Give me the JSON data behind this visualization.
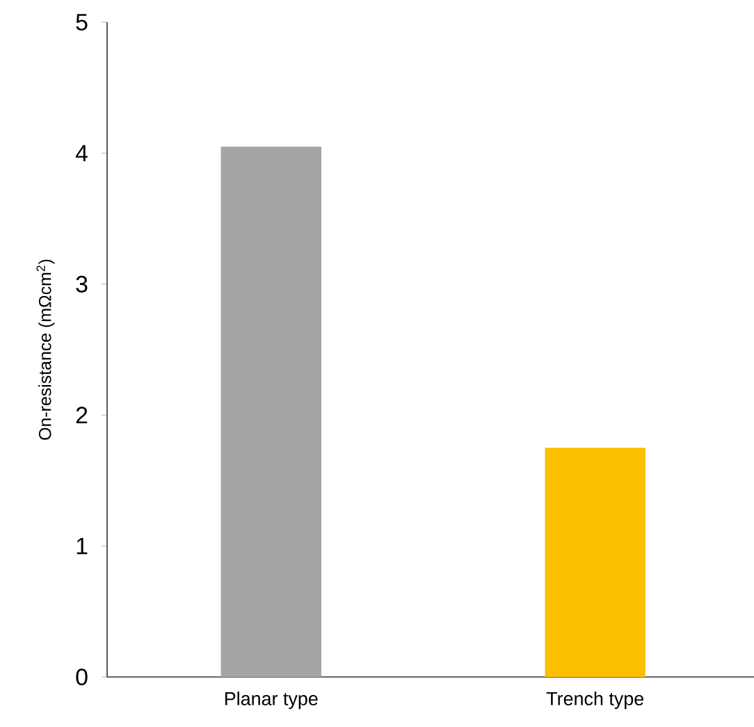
{
  "chart_data": {
    "type": "bar",
    "ylabel": "On-resistance (mΩcm$^{2}$)",
    "categories": [
      "Planar type",
      "Trench type"
    ],
    "values": [
      4.05,
      1.75
    ],
    "colors": [
      "#a5a5a5",
      "#fcbf00"
    ],
    "ylim": [
      0,
      5
    ],
    "yticks": [
      0,
      1,
      2,
      3,
      4,
      5
    ],
    "grid": false
  }
}
